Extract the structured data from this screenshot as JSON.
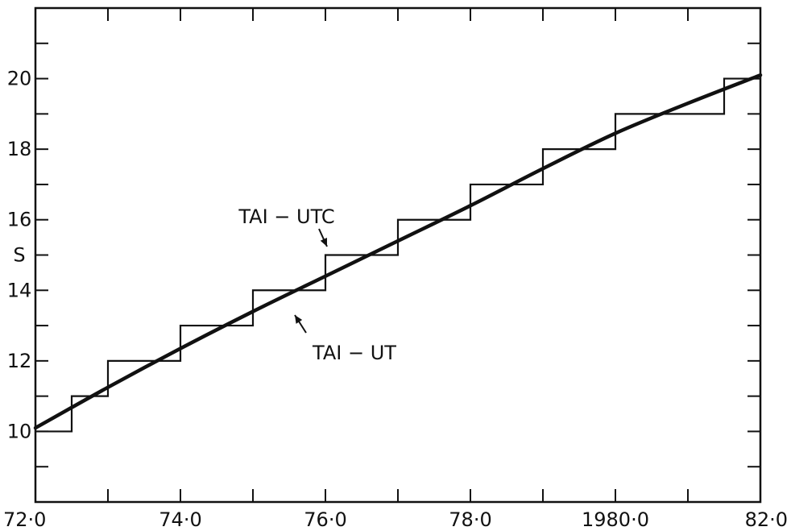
{
  "chart_data": {
    "type": "line",
    "title": "",
    "xlabel": "",
    "ylabel": "",
    "xlim": [
      72.0,
      82.0
    ],
    "ylim": [
      8.0,
      22.0
    ],
    "grid": false,
    "x_ticks": [
      72,
      73,
      74,
      75,
      76,
      77,
      78,
      79,
      80,
      81,
      82
    ],
    "y_ticks": [
      8,
      9,
      10,
      11,
      12,
      13,
      14,
      15,
      16,
      17,
      18,
      19,
      20,
      21,
      22
    ],
    "x_tick_labels": [
      {
        "value": 72,
        "label": "72·0"
      },
      {
        "value": 74,
        "label": "74·0"
      },
      {
        "value": 76,
        "label": "76·0"
      },
      {
        "value": 78,
        "label": "78·0"
      },
      {
        "value": 80,
        "label": "1980·0"
      },
      {
        "value": 82,
        "label": "82·0"
      }
    ],
    "y_tick_labels": [
      {
        "value": 10,
        "label": "10"
      },
      {
        "value": 12,
        "label": "12"
      },
      {
        "value": 14,
        "label": "14"
      },
      {
        "value": 15,
        "label": "S"
      },
      {
        "value": 16,
        "label": "16"
      },
      {
        "value": 18,
        "label": "18"
      },
      {
        "value": 20,
        "label": "20"
      }
    ],
    "series": [
      {
        "name": "TAI − UTC",
        "style": "step",
        "x": [
          72.0,
          72.5,
          73.0,
          74.0,
          75.0,
          76.0,
          77.0,
          78.0,
          79.0,
          80.0,
          81.5,
          82.0
        ],
        "values": [
          10,
          11,
          12,
          13,
          14,
          15,
          16,
          17,
          18,
          19,
          20,
          20
        ]
      },
      {
        "name": "TAI − UT",
        "style": "smooth",
        "x": [
          72.0,
          73.0,
          74.0,
          75.0,
          76.0,
          77.0,
          78.0,
          79.0,
          80.0,
          81.0,
          82.0
        ],
        "values": [
          10.1,
          11.25,
          12.35,
          13.4,
          14.4,
          15.4,
          16.4,
          17.45,
          18.45,
          19.3,
          20.1
        ]
      }
    ],
    "annotations": [
      {
        "text": "TAI − UTC",
        "series": "TAI − UTC",
        "target": [
          76.0,
          15.0
        ]
      },
      {
        "text": "TAI − UT",
        "series": "TAI − UT",
        "target": [
          75.5,
          13.7
        ]
      }
    ]
  }
}
